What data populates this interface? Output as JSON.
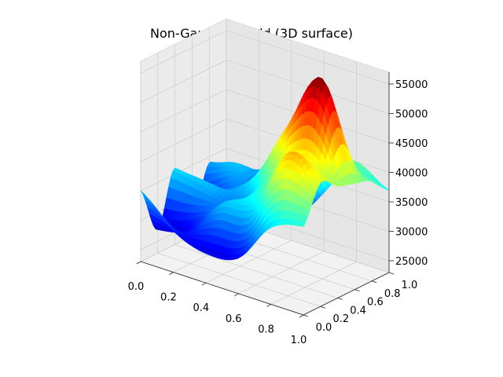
{
  "chart_data": {
    "type": "surface3d",
    "title": "Non-Gaussian Field (3D surface)",
    "colormap": "jet",
    "x_ticks": [
      "0.0",
      "0.2",
      "0.4",
      "0.6",
      "0.8",
      "1.0"
    ],
    "y_ticks": [
      "0.0",
      "0.2",
      "0.4",
      "0.6",
      "0.8",
      "1.0"
    ],
    "z_ticks": [
      "25000",
      "30000",
      "35000",
      "40000",
      "45000",
      "50000",
      "55000"
    ],
    "xlim": [
      0,
      1
    ],
    "ylim": [
      0,
      1
    ],
    "zlim": [
      23000,
      57000
    ],
    "grid": true,
    "surface": {
      "x": [
        0.0,
        0.2,
        0.4,
        0.6,
        0.8,
        1.0
      ],
      "y": [
        0.0,
        0.2,
        0.4,
        0.6,
        0.8,
        1.0
      ],
      "z": [
        [
          35000,
          30000,
          28000,
          29000,
          36000,
          38000
        ],
        [
          27000,
          29000,
          35000,
          37000,
          47000,
          44000
        ],
        [
          36000,
          35000,
          33000,
          41000,
          45000,
          42000
        ],
        [
          26000,
          32000,
          37000,
          47000,
          57000,
          41000
        ],
        [
          34000,
          35000,
          29000,
          32000,
          40000,
          40000
        ],
        [
          29000,
          33000,
          37000,
          38000,
          40000,
          37000
        ]
      ]
    }
  }
}
